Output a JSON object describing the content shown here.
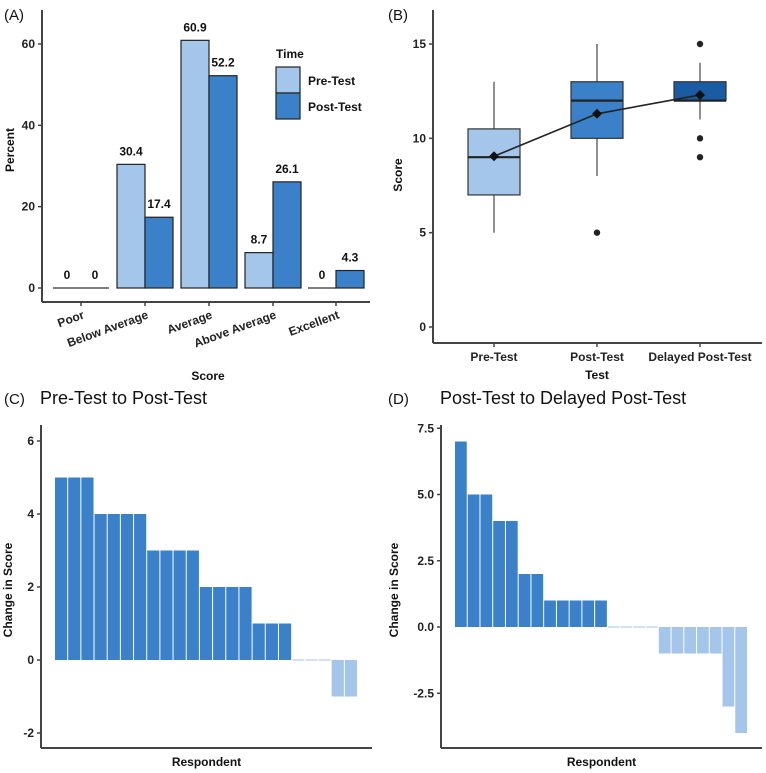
{
  "colors": {
    "light": "#a3c6ea",
    "mid": "#3a81c9",
    "dark": "#1a5ba3",
    "axis": "#444444"
  },
  "chart_data": [
    {
      "panel": "(A)",
      "type": "bar",
      "xlabel": "Score",
      "ylabel": "Percent",
      "ylim": [
        0,
        65
      ],
      "yticks": [
        0,
        20,
        40,
        60
      ],
      "categories": [
        "Poor",
        "Below Average",
        "Average",
        "Above Average",
        "Excellent"
      ],
      "legend": {
        "title": "Time",
        "position": "top-right"
      },
      "series": [
        {
          "name": "Pre-Test",
          "values": [
            0,
            30.4,
            60.9,
            8.7,
            0
          ],
          "labels": [
            "0",
            "30.4",
            "60.9",
            "8.7",
            "0"
          ]
        },
        {
          "name": "Post-Test",
          "values": [
            0,
            17.4,
            52.2,
            26.1,
            4.3
          ],
          "labels": [
            "0",
            "17.4",
            "52.2",
            "26.1",
            "4.3"
          ]
        }
      ]
    },
    {
      "panel": "(B)",
      "type": "box",
      "xlabel": "Test",
      "ylabel": "Score",
      "ylim": [
        0,
        16
      ],
      "yticks": [
        0,
        5,
        10,
        15
      ],
      "categories": [
        "Pre-Test",
        "Post-Test",
        "Delayed Post-Test"
      ],
      "boxes": [
        {
          "min": 5,
          "q1": 7,
          "median": 9,
          "q3": 10.5,
          "max": 13,
          "mean": 9.05,
          "outliers": []
        },
        {
          "min": 8,
          "q1": 10,
          "median": 12,
          "q3": 13,
          "max": 15,
          "mean": 11.3,
          "outliers": [
            5
          ]
        },
        {
          "min": 11,
          "q1": 12,
          "median": 12,
          "q3": 13,
          "max": 14,
          "mean": 12.3,
          "outliers": [
            15,
            10,
            9
          ]
        }
      ]
    },
    {
      "panel": "(C)",
      "title": "Pre-Test to Post-Test",
      "type": "bar",
      "xlabel": "Respondent",
      "ylabel": "Change in Score",
      "ylim": [
        -2.2,
        6.4
      ],
      "yticks": [
        -2,
        0,
        2,
        4,
        6
      ],
      "values": [
        5,
        5,
        5,
        4,
        4,
        4,
        4,
        3,
        3,
        3,
        3,
        2,
        2,
        2,
        2,
        1,
        1,
        1,
        0,
        0,
        0,
        -1,
        -1
      ]
    },
    {
      "panel": "(D)",
      "title": "Post-Test to Delayed Post-Test",
      "type": "bar",
      "xlabel": "Respondent",
      "ylabel": "Change in Score",
      "ylim": [
        -4.6,
        7.5
      ],
      "yticks": [
        -2.5,
        0.0,
        2.5,
        5.0,
        7.5
      ],
      "ytick_labels": [
        "-2.5",
        "0.0",
        "2.5",
        "5.0",
        "7.5"
      ],
      "values": [
        7,
        5,
        5,
        4,
        4,
        2,
        2,
        1,
        1,
        1,
        1,
        1,
        0,
        0,
        0,
        0,
        -1,
        -1,
        -1,
        -1,
        -1,
        -3,
        -4
      ]
    }
  ]
}
